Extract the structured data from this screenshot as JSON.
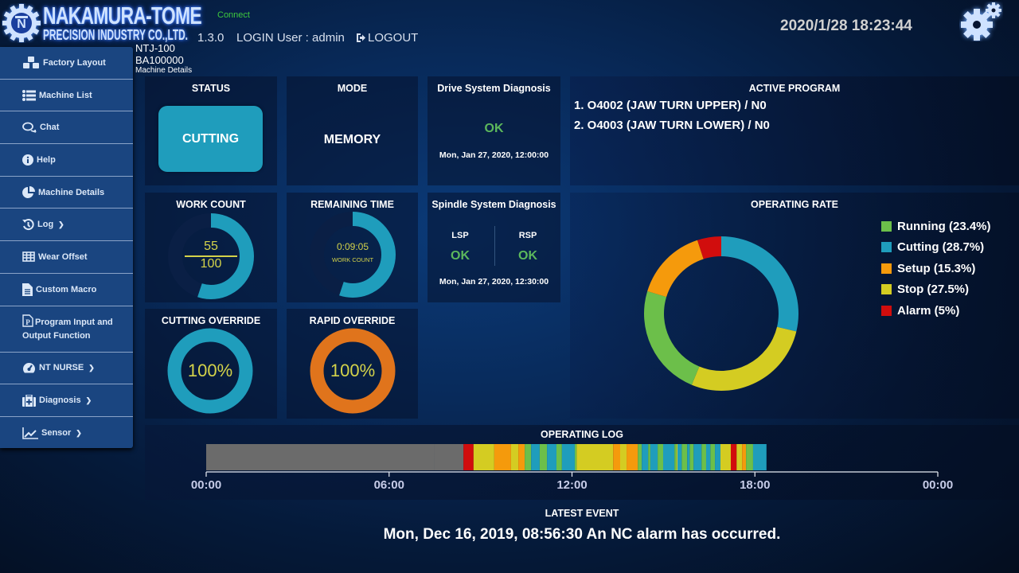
{
  "header": {
    "logo_line1": "NAKAMURA-TOME",
    "logo_line2": "PRECISION INDUSTRY CO.,LTD.",
    "connection_status": "Connect",
    "version": "1.3.0",
    "login_user": "LOGIN User : admin",
    "logout_label": "LOGOUT",
    "datetime": "2020/1/28 18:23:44",
    "icons": {
      "settings": "gears-icon",
      "logout": "sign-out-icon"
    }
  },
  "machine": {
    "model": "NTJ-100",
    "serial": "BA100000",
    "page": "Machine Details"
  },
  "sidebar": {
    "items": [
      {
        "label": "Factory Layout",
        "icon": "cubes-icon"
      },
      {
        "label": "Machine List",
        "icon": "list-icon"
      },
      {
        "label": "Chat",
        "icon": "comments-icon"
      },
      {
        "label": "Help",
        "icon": "info-icon"
      },
      {
        "label": "Machine Details",
        "icon": "pie-chart-icon"
      },
      {
        "label": "Log",
        "icon": "history-icon",
        "expandable": true
      },
      {
        "label": "Wear Offset",
        "icon": "table-icon"
      },
      {
        "label": "Custom Macro",
        "icon": "file-text-icon"
      },
      {
        "label": "Program Input and Output Function",
        "icon": "file-p-icon"
      },
      {
        "label": "NT NURSE",
        "icon": "tachometer-icon",
        "expandable": true
      },
      {
        "label": "Diagnosis",
        "icon": "medkit-icon",
        "expandable": true
      },
      {
        "label": "Sensor",
        "icon": "line-chart-icon",
        "expandable": true
      }
    ]
  },
  "status": {
    "title": "STATUS",
    "value": "CUTTING",
    "color": "#1f9dbc"
  },
  "mode": {
    "title": "MODE",
    "value": "MEMORY"
  },
  "drive_diag": {
    "title": "Drive System Diagnosis",
    "result": "OK",
    "date": "Mon, Jan 27, 2020, 12:00:00"
  },
  "work_count": {
    "title": "WORK COUNT",
    "current": "55",
    "total": "100",
    "fraction": 0.55
  },
  "remaining_time": {
    "title": "REMAINING TIME",
    "value": "0:09:05",
    "sub": "WORK COUNT",
    "fraction": 0.55
  },
  "spindle_diag": {
    "title": "Spindle System Diagnosis",
    "lsp_label": "LSP",
    "lsp_result": "OK",
    "rsp_label": "RSP",
    "rsp_result": "OK",
    "date": "Mon, Jan 27, 2020, 12:30:00"
  },
  "cutting_override": {
    "title": "CUTTING OVERRIDE",
    "value": "100%",
    "fraction": 1.0,
    "color": "#1f9dbc"
  },
  "rapid_override": {
    "title": "RAPID OVERRIDE",
    "value": "100%",
    "fraction": 1.0,
    "color": "#e0741c"
  },
  "active_program": {
    "title": "ACTIVE PROGRAM",
    "items": [
      "1. O4002 (JAW TURN UPPER) / N0",
      "2. O4003 (JAW TURN LOWER) / N0"
    ]
  },
  "chart_data": [
    {
      "type": "pie",
      "title": "OPERATING RATE",
      "donut": true,
      "legend_position": "right",
      "categories": [
        "Running",
        "Cutting",
        "Setup",
        "Stop",
        "Alarm"
      ],
      "legend_labels": [
        "Running (23.4%)",
        "Cutting (28.7%)",
        "Setup (15.3%)",
        "Stop (27.5%)",
        "Alarm (5%)"
      ],
      "values": [
        23.4,
        28.7,
        15.3,
        27.5,
        5
      ],
      "colors": [
        "#6cbf4a",
        "#1f9dbc",
        "#f59a0c",
        "#d4cc22",
        "#d10d0d"
      ],
      "draw_order": [
        "Cutting",
        "Stop",
        "Running",
        "Setup",
        "Alarm"
      ]
    },
    {
      "type": "timeline",
      "title": "OPERATING LOG",
      "x_range_hours": [
        0,
        24
      ],
      "tick_labels": [
        "00:00",
        "06:00",
        "12:00",
        "18:00",
        "00:00"
      ],
      "tick_hours": [
        0,
        6,
        12,
        18,
        24
      ],
      "state_colors": {
        "off": "#6b6b6b",
        "running": "#6cbf4a",
        "cutting": "#1f9dbc",
        "setup": "#f59a0c",
        "stop": "#d4cc22",
        "alarm": "#d10d0d"
      },
      "segments": [
        {
          "state": "off",
          "start": 0.0,
          "end": 7.47
        },
        {
          "state": "off",
          "start": 7.47,
          "end": 8.44
        },
        {
          "state": "alarm",
          "start": 8.44,
          "end": 8.77
        },
        {
          "state": "stop",
          "start": 8.77,
          "end": 9.45
        },
        {
          "state": "setup",
          "start": 9.45,
          "end": 10.0
        },
        {
          "state": "stop",
          "start": 10.0,
          "end": 10.24
        },
        {
          "state": "setup",
          "start": 10.24,
          "end": 10.45
        },
        {
          "state": "running",
          "start": 10.45,
          "end": 10.66
        },
        {
          "state": "cutting",
          "start": 10.66,
          "end": 10.94
        },
        {
          "state": "running",
          "start": 10.94,
          "end": 11.18
        },
        {
          "state": "cutting",
          "start": 11.18,
          "end": 11.49
        },
        {
          "state": "running",
          "start": 11.49,
          "end": 11.67
        },
        {
          "state": "cutting",
          "start": 11.67,
          "end": 12.09
        },
        {
          "state": "running",
          "start": 12.09,
          "end": 12.15
        },
        {
          "state": "stop",
          "start": 12.15,
          "end": 13.35
        },
        {
          "state": "setup",
          "start": 13.35,
          "end": 13.58
        },
        {
          "state": "stop",
          "start": 13.58,
          "end": 13.79
        },
        {
          "state": "setup",
          "start": 13.79,
          "end": 14.16
        },
        {
          "state": "running",
          "start": 14.16,
          "end": 14.29
        },
        {
          "state": "cutting",
          "start": 14.29,
          "end": 14.5
        },
        {
          "state": "running",
          "start": 14.5,
          "end": 14.57
        },
        {
          "state": "cutting",
          "start": 14.57,
          "end": 14.81
        },
        {
          "state": "running",
          "start": 14.81,
          "end": 14.99
        },
        {
          "state": "cutting",
          "start": 14.99,
          "end": 15.36
        },
        {
          "state": "running",
          "start": 15.36,
          "end": 15.43
        },
        {
          "state": "stop",
          "start": 15.43,
          "end": 15.46
        },
        {
          "state": "cutting",
          "start": 15.46,
          "end": 15.6
        },
        {
          "state": "running",
          "start": 15.6,
          "end": 15.78
        },
        {
          "state": "cutting",
          "start": 15.78,
          "end": 15.86
        },
        {
          "state": "running",
          "start": 15.86,
          "end": 15.99
        },
        {
          "state": "cutting",
          "start": 15.99,
          "end": 16.25
        },
        {
          "state": "running",
          "start": 16.25,
          "end": 16.4
        },
        {
          "state": "cutting",
          "start": 16.4,
          "end": 16.54
        },
        {
          "state": "running",
          "start": 16.54,
          "end": 16.69
        },
        {
          "state": "cutting",
          "start": 16.69,
          "end": 16.87
        },
        {
          "state": "stop",
          "start": 16.87,
          "end": 17.21
        },
        {
          "state": "alarm",
          "start": 17.21,
          "end": 17.4
        },
        {
          "state": "stop",
          "start": 17.4,
          "end": 17.58
        },
        {
          "state": "setup",
          "start": 17.58,
          "end": 17.71
        },
        {
          "state": "running",
          "start": 17.71,
          "end": 17.94
        },
        {
          "state": "cutting",
          "start": 17.94,
          "end": 18.38
        }
      ]
    }
  ],
  "latest_event": {
    "title": "LATEST EVENT",
    "text": "Mon, Dec 16, 2019, 08:56:30 An NC alarm has occurred."
  }
}
